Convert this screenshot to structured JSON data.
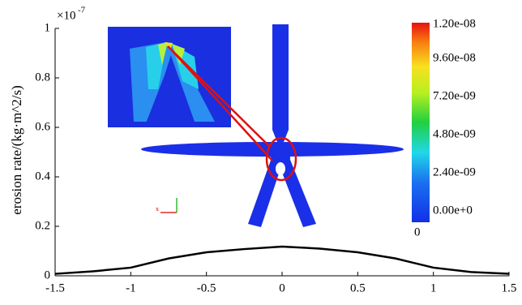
{
  "chart_data": {
    "type": "line",
    "ylabel": "erosion rate/(kg·m^2/s)",
    "y_multiplier": {
      "base": "×10",
      "exponent": "-7"
    },
    "x": [
      -1.5,
      -1.25,
      -1,
      -0.75,
      -0.5,
      -0.25,
      0,
      0.25,
      0.5,
      0.75,
      1,
      1.25,
      1.5
    ],
    "series": [
      {
        "color": "#000000",
        "values": [
          0.008,
          0.018,
          0.033,
          0.07,
          0.095,
          0.108,
          0.118,
          0.11,
          0.095,
          0.07,
          0.033,
          0.015,
          0.008
        ]
      }
    ],
    "xlim": [
      -1.5,
      1.5
    ],
    "xticks": [
      -1.5,
      -1,
      -0.5,
      0,
      0.5,
      1,
      1.5
    ],
    "ylim": [
      0,
      1
    ],
    "yticks": [
      0,
      0.2,
      0.4,
      0.6,
      0.8,
      1
    ],
    "inset": {
      "colorbar_labels": [
        "1.20e-08",
        "9.60e-08",
        "7.20e-09",
        "4.80e-09",
        "2.40e-09",
        "0.00e+0"
      ],
      "colorbar_min_label": "0"
    }
  }
}
